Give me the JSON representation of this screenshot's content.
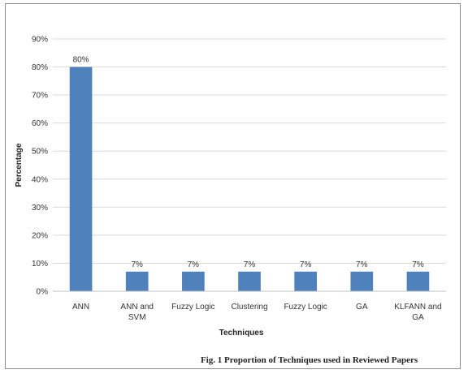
{
  "chart_data": {
    "type": "bar",
    "categories": [
      [
        "ANN"
      ],
      [
        "ANN and",
        "SVM"
      ],
      [
        "Fuzzy Logic"
      ],
      [
        "Clustering"
      ],
      [
        "Fuzzy Logic"
      ],
      [
        "GA"
      ],
      [
        "KLFANN and",
        "GA"
      ]
    ],
    "values": [
      80,
      7,
      7,
      7,
      7,
      7,
      7
    ],
    "data_labels": [
      "80%",
      "7%",
      "7%",
      "7%",
      "7%",
      "7%",
      "7%"
    ],
    "xlabel": "Techniques",
    "ylabel": "Percentage",
    "ylim": [
      0,
      90
    ],
    "yticks": [
      0,
      10,
      20,
      30,
      40,
      50,
      60,
      70,
      80,
      90
    ],
    "ytick_labels": [
      "0%",
      "10%",
      "20%",
      "30%",
      "40%",
      "50%",
      "60%",
      "70%",
      "80%",
      "90%"
    ],
    "grid": true,
    "bar_color": "#4f81bd",
    "grid_color": "#d9d9d9"
  },
  "caption": "Fig. 1 Proportion of Techniques used in Reviewed Papers"
}
